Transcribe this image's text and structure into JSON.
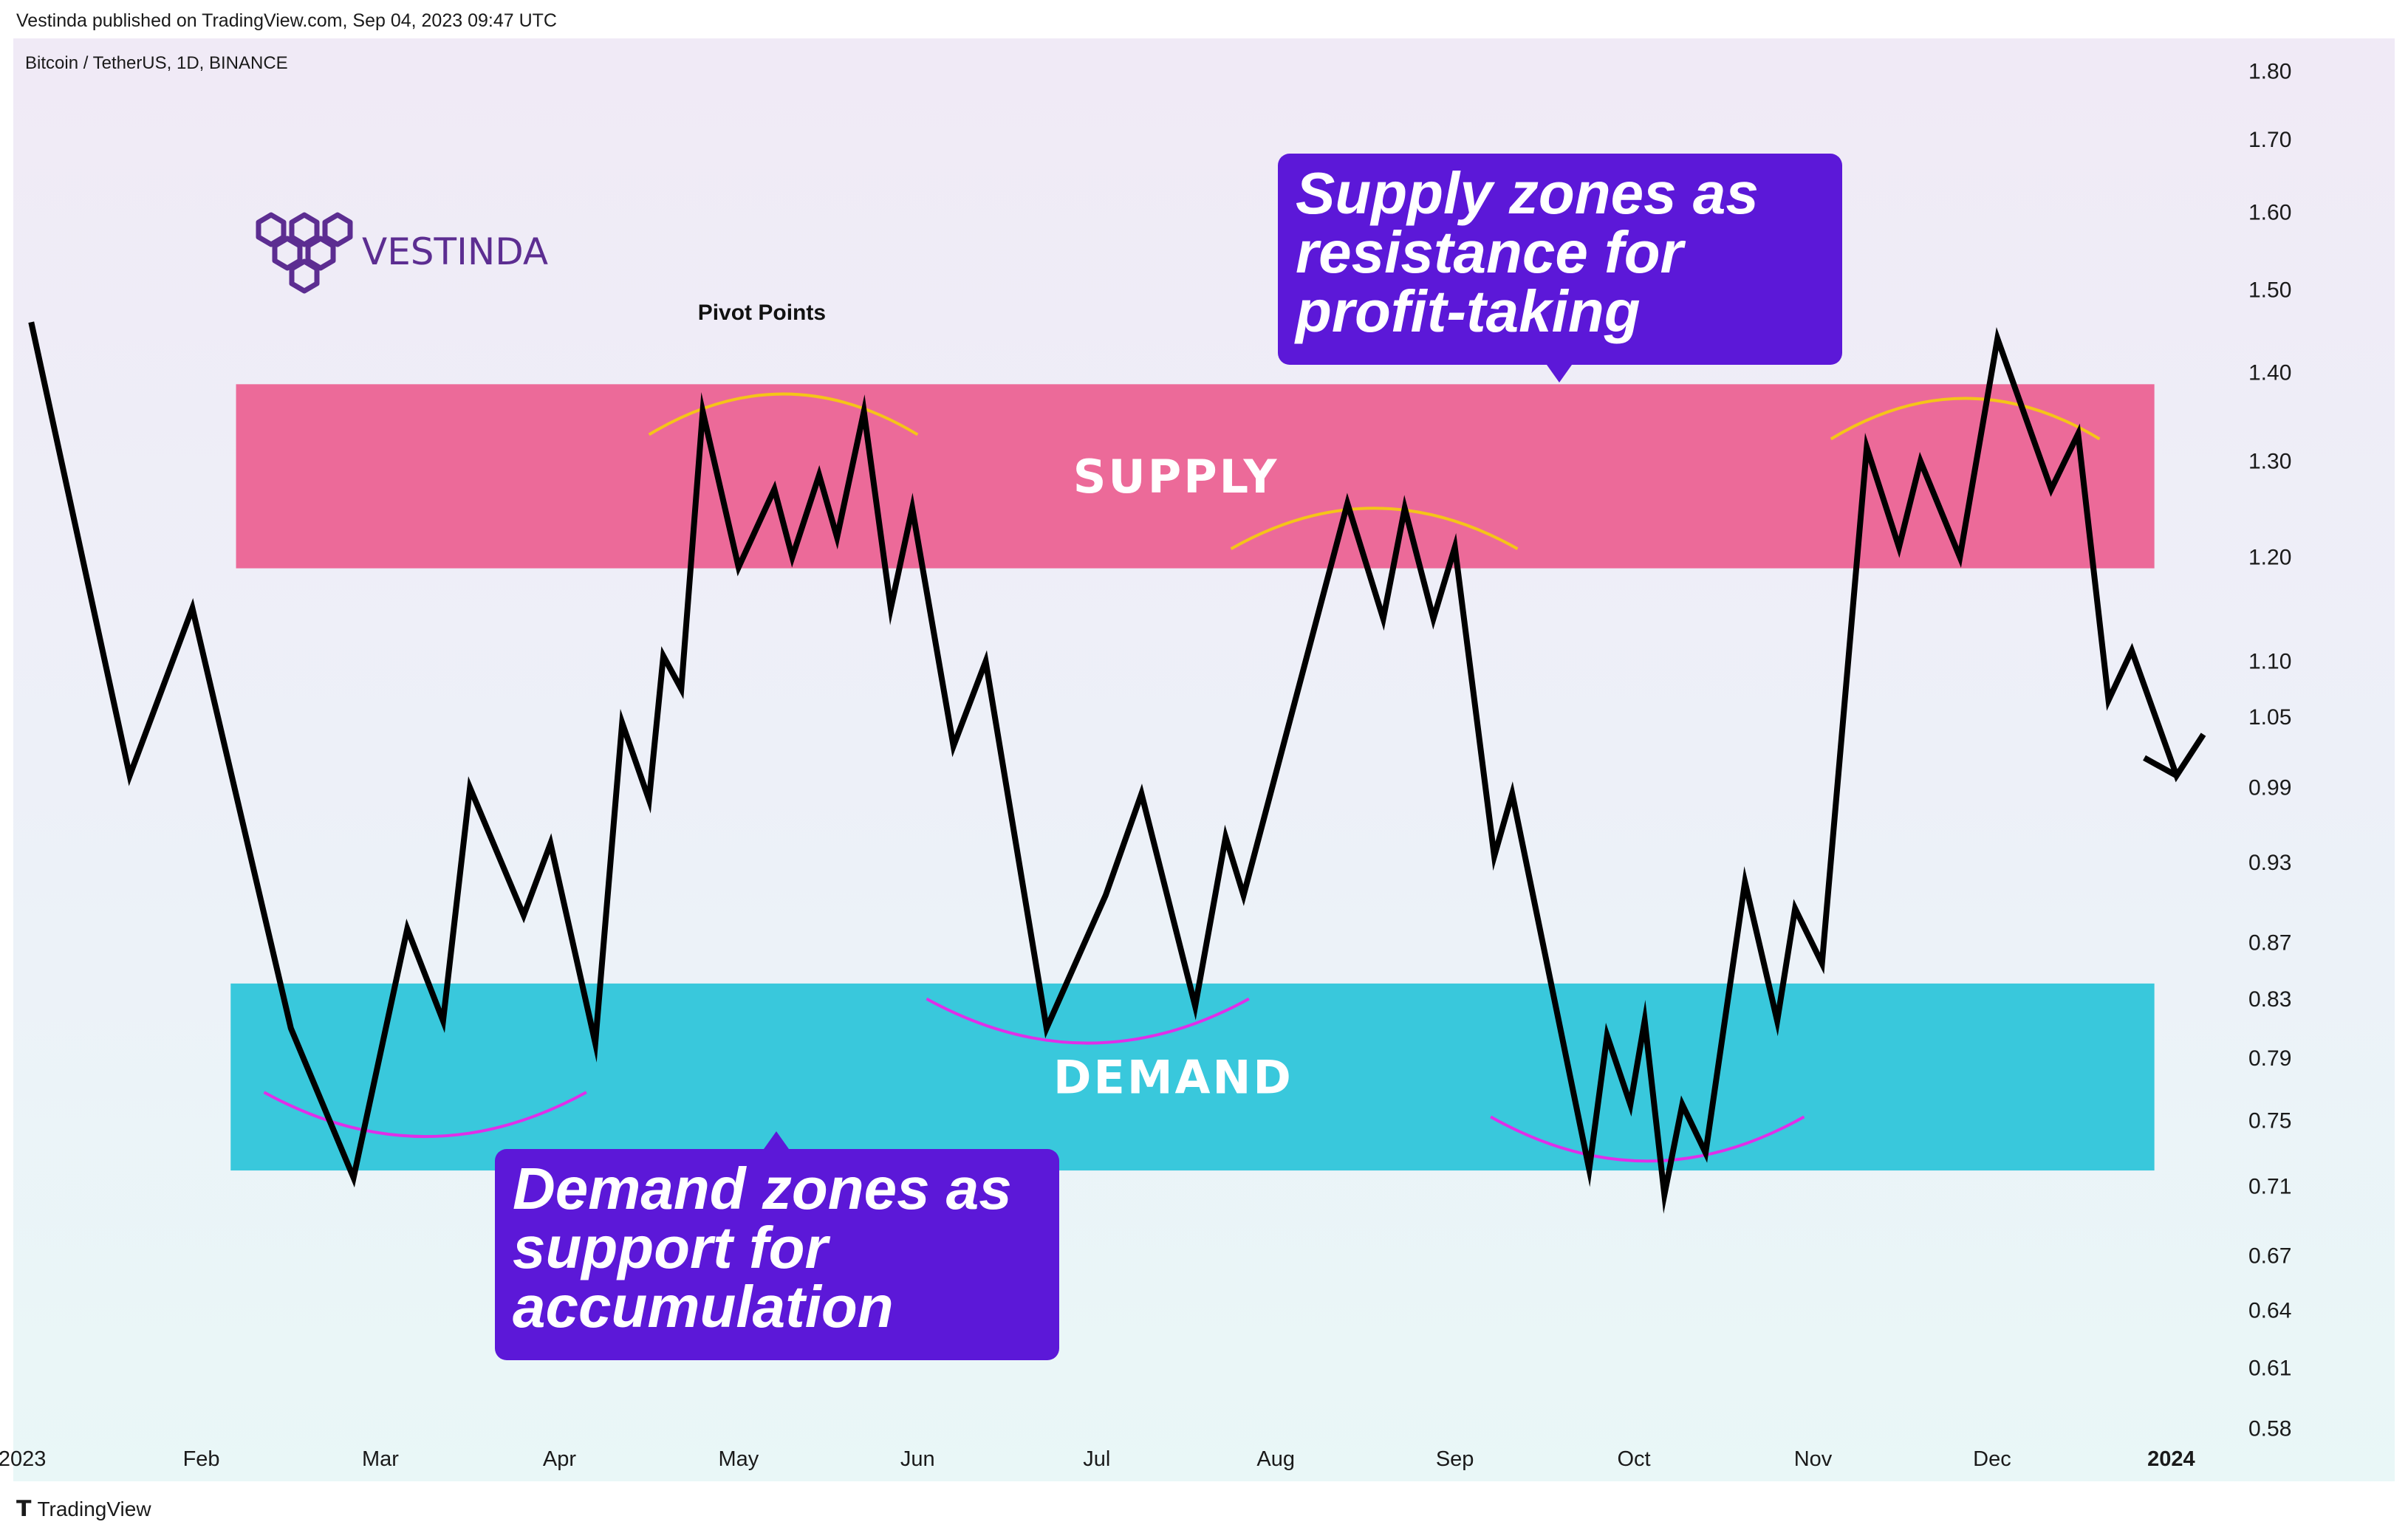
{
  "header": {
    "published": "Vestinda published on TradingView.com, Sep 04, 2023 09:47 UTC"
  },
  "footer": {
    "icon": "tradingview-logo-icon",
    "brand": "TradingView"
  },
  "branding": {
    "name": "VESTINDA",
    "color": "#5c2d91"
  },
  "colors": {
    "price_line": "#000000",
    "supply_zone": "#ec6a99",
    "demand_zone": "#39c8dc",
    "pivot_top": "#f5c518",
    "pivot_bottom": "#e02ee8",
    "callout": "#5c18d8",
    "axis_text": "#1a1a1a"
  },
  "callouts": {
    "supply": [
      "Supply zones as",
      "resistance for",
      "profit-taking"
    ],
    "demand": [
      "Demand zones as",
      "support for",
      "accumulation"
    ]
  },
  "chart_data": {
    "type": "line",
    "title": "Bitcoin / TetherUS, 1D, BINANCE",
    "y_scale": "log",
    "ylim": [
      0.555,
      1.85
    ],
    "xlim": [
      -0.05,
      12.25
    ],
    "x_ticks": [
      {
        "label": "2023",
        "x": 0
      },
      {
        "label": "Feb",
        "x": 1
      },
      {
        "label": "Mar",
        "x": 2
      },
      {
        "label": "Apr",
        "x": 3
      },
      {
        "label": "May",
        "x": 4
      },
      {
        "label": "Jun",
        "x": 5
      },
      {
        "label": "Jul",
        "x": 6
      },
      {
        "label": "Aug",
        "x": 7
      },
      {
        "label": "Sep",
        "x": 8
      },
      {
        "label": "Oct",
        "x": 9
      },
      {
        "label": "Nov",
        "x": 10
      },
      {
        "label": "Dec",
        "x": 11
      },
      {
        "label": "2024",
        "x": 12
      }
    ],
    "y_ticks": [
      1.8,
      1.7,
      1.6,
      1.5,
      1.4,
      1.3,
      1.2,
      1.1,
      1.05,
      0.99,
      0.93,
      0.87,
      0.83,
      0.79,
      0.75,
      0.71,
      0.67,
      0.64,
      0.61,
      0.58
    ],
    "y_tick_labels": [
      "1.80",
      "1.70",
      "1.60",
      "1.50",
      "1.40",
      "1.30",
      "1.20",
      "1.10",
      "1.05",
      "0.99",
      "0.93",
      "0.87",
      "0.83",
      "0.79",
      "0.75",
      "0.71",
      "0.67",
      "0.64",
      "0.61",
      "0.58"
    ],
    "series": [
      {
        "name": "price",
        "points": [
          [
            0.05,
            1.46
          ],
          [
            0.6,
            1.0
          ],
          [
            0.95,
            1.15
          ],
          [
            1.5,
            0.81
          ],
          [
            1.85,
            0.715
          ],
          [
            2.15,
            0.88
          ],
          [
            2.35,
            0.815
          ],
          [
            2.5,
            0.99
          ],
          [
            2.8,
            0.89
          ],
          [
            2.95,
            0.945
          ],
          [
            3.2,
            0.8
          ],
          [
            3.35,
            1.045
          ],
          [
            3.5,
            0.98
          ],
          [
            3.58,
            1.105
          ],
          [
            3.68,
            1.075
          ],
          [
            3.8,
            1.355
          ],
          [
            4.0,
            1.19
          ],
          [
            4.2,
            1.27
          ],
          [
            4.3,
            1.2
          ],
          [
            4.45,
            1.285
          ],
          [
            4.55,
            1.22
          ],
          [
            4.7,
            1.355
          ],
          [
            4.85,
            1.15
          ],
          [
            4.97,
            1.25
          ],
          [
            5.2,
            1.025
          ],
          [
            5.38,
            1.1
          ],
          [
            5.72,
            0.81
          ],
          [
            6.05,
            0.905
          ],
          [
            6.25,
            0.985
          ],
          [
            6.55,
            0.825
          ],
          [
            6.72,
            0.95
          ],
          [
            6.82,
            0.905
          ],
          [
            7.4,
            1.255
          ],
          [
            7.6,
            1.14
          ],
          [
            7.72,
            1.25
          ],
          [
            7.88,
            1.14
          ],
          [
            8.0,
            1.21
          ],
          [
            8.22,
            0.935
          ],
          [
            8.32,
            0.985
          ],
          [
            8.75,
            0.72
          ],
          [
            8.85,
            0.805
          ],
          [
            8.98,
            0.76
          ],
          [
            9.06,
            0.815
          ],
          [
            9.17,
            0.705
          ],
          [
            9.27,
            0.76
          ],
          [
            9.4,
            0.73
          ],
          [
            9.62,
            0.915
          ],
          [
            9.8,
            0.815
          ],
          [
            9.9,
            0.895
          ],
          [
            10.05,
            0.855
          ],
          [
            10.3,
            1.315
          ],
          [
            10.48,
            1.21
          ],
          [
            10.6,
            1.3
          ],
          [
            10.82,
            1.2
          ],
          [
            11.03,
            1.44
          ],
          [
            11.33,
            1.27
          ],
          [
            11.48,
            1.33
          ],
          [
            11.65,
            1.065
          ],
          [
            11.78,
            1.11
          ],
          [
            12.03,
            1.0
          ],
          [
            12.18,
            1.035
          ]
        ]
      }
    ],
    "arrow_tail": [
      11.85,
      1.015
    ],
    "zones": [
      {
        "label": "SUPPLY",
        "x_range": [
          1.2,
          11.9
        ],
        "y_range": [
          1.19,
          1.385
        ]
      },
      {
        "label": "DEMAND",
        "x_range": [
          1.17,
          11.9
        ],
        "y_range": [
          0.72,
          0.84
        ]
      }
    ],
    "pivot_arcs": [
      {
        "kind": "top",
        "x_range": [
          3.5,
          5.0
        ],
        "peak": 1.375
      },
      {
        "kind": "top",
        "x_range": [
          6.75,
          8.35
        ],
        "peak": 1.25
      },
      {
        "kind": "top",
        "x_range": [
          10.1,
          11.6
        ],
        "peak": 1.37
      },
      {
        "kind": "bottom",
        "x_range": [
          1.35,
          3.15
        ],
        "trough": 0.74
      },
      {
        "kind": "bottom",
        "x_range": [
          5.05,
          6.85
        ],
        "trough": 0.8
      },
      {
        "kind": "bottom",
        "x_range": [
          8.2,
          9.95
        ],
        "trough": 0.725
      }
    ],
    "annotations": [
      {
        "text": "Pivot Points",
        "x": 4.13,
        "y": 1.463
      }
    ]
  }
}
